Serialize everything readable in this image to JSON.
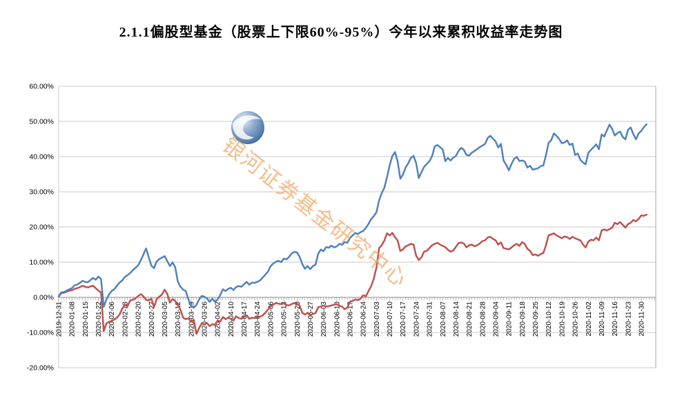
{
  "title": "2.1.1偏股型基金（股票上下限60%-95%）今年以来累积收益率走势图",
  "watermark": {
    "text": "银河证券基金研究中心",
    "color": "#F2A45F"
  },
  "logo": {
    "name": "galaxy-securities-sphere-logo"
  },
  "chart_data": {
    "type": "line",
    "title": "2.1.1偏股型基金（股票上下限60%-95%）今年以来累积收益率走势图",
    "xlabel": "",
    "ylabel": "",
    "ylim": [
      -20,
      60
    ],
    "grid": true,
    "legend_position": "none",
    "y_tick_values": [
      60,
      50,
      40,
      30,
      20,
      10,
      0,
      -10,
      -20
    ],
    "y_tick_labels": [
      "60.00%",
      "50.00%",
      "40.00%",
      "30.00%",
      "20.00%",
      "10.00%",
      "0.00%",
      "-10.00%",
      "-20.00%"
    ],
    "label_interval_days": 5,
    "x_tick_labels": [
      "2019-12-31",
      "2020-01-08",
      "2020-01-15",
      "2020-01-22",
      "2020-02-06",
      "2020-02-13",
      "2020-02-20",
      "2020-02-27",
      "2020-03-05",
      "2020-03-12",
      "2020-03-19",
      "2020-03-26",
      "2020-04-02",
      "2020-04-10",
      "2020-04-17",
      "2020-04-24",
      "2020-05-06",
      "2020-05-13",
      "2020-05-20",
      "2020-05-27",
      "2020-06-03",
      "2020-06-10",
      "2020-06-17",
      "2020-06-24",
      "2020-07-03",
      "2020-07-10",
      "2020-07-17",
      "2020-07-24",
      "2020-07-31",
      "2020-08-07",
      "2020-08-14",
      "2020-08-21",
      "2020-08-28",
      "2020-09-04",
      "2020-09-11",
      "2020-09-18",
      "2020-09-25",
      "2020-10-12",
      "2020-10-19",
      "2020-10-26",
      "2020-11-02",
      "2020-11-09",
      "2020-11-16",
      "2020-11-23",
      "2020-11-30"
    ],
    "series": [
      {
        "name": "blue",
        "color": "#4F81BD",
        "unit": "percent_ytd_cumulative_return",
        "values": [
          0.3,
          1.4,
          1.5,
          1.9,
          2.3,
          2.6,
          3.4,
          3.6,
          4.1,
          4.7,
          4.4,
          4.3,
          4.9,
          5.5,
          5.0,
          5.9,
          5.2,
          -2.7,
          -0.6,
          0.8,
          1.8,
          2.3,
          3.3,
          4.2,
          4.8,
          5.8,
          6.3,
          6.9,
          7.7,
          8.4,
          9.1,
          10.5,
          12.2,
          13.9,
          11.5,
          9.0,
          8.3,
          10.2,
          10.9,
          11.3,
          11.7,
          10.3,
          8.9,
          9.9,
          8.6,
          4.5,
          3.0,
          2.2,
          1.8,
          -0.6,
          -2.4,
          -2.9,
          -2.2,
          -0.6,
          0.4,
          0.2,
          -0.3,
          -1.3,
          -0.4,
          -1.2,
          -0.6,
          0.6,
          2.3,
          1.8,
          2.4,
          2.7,
          2.1,
          2.9,
          3.2,
          3.0,
          3.7,
          4.4,
          3.6,
          4.2,
          4.1,
          4.4,
          4.8,
          5.6,
          6.4,
          7.3,
          8.8,
          9.6,
          10.1,
          10.4,
          10.0,
          11.0,
          10.8,
          11.5,
          12.5,
          12.9,
          12.8,
          11.5,
          9.5,
          8.1,
          8.9,
          8.0,
          8.9,
          9.3,
          12.4,
          13.6,
          13.1,
          14.3,
          14.1,
          14.7,
          14.2,
          14.5,
          15.2,
          14.9,
          15.7,
          15.5,
          16.9,
          17.6,
          18.3,
          18.0,
          18.5,
          18.9,
          19.7,
          20.9,
          22.2,
          23.1,
          24.2,
          27.6,
          29.6,
          31.2,
          34.2,
          37.5,
          40.2,
          41.3,
          38.6,
          33.7,
          34.9,
          36.9,
          38.1,
          39.6,
          40.2,
          38.1,
          33.9,
          35.6,
          37.1,
          37.9,
          38.7,
          40.1,
          42.9,
          43.3,
          42.7,
          42.1,
          38.7,
          39.6,
          38.9,
          39.7,
          40.2,
          41.6,
          42.5,
          41.9,
          40.5,
          40.3,
          41.1,
          41.6,
          42.1,
          42.7,
          43.1,
          43.6,
          45.3,
          45.9,
          45.1,
          44.3,
          42.6,
          43.6,
          38.9,
          37.6,
          36.1,
          37.9,
          39.4,
          39.9,
          38.7,
          38.9,
          38.6,
          36.9,
          37.4,
          36.3,
          36.5,
          36.7,
          37.3,
          37.5,
          40.4,
          43.9,
          44.7,
          46.6,
          45.9,
          45.0,
          43.8,
          44.0,
          44.6,
          43.3,
          43.7,
          40.5,
          40.9,
          39.1,
          38.3,
          37.8,
          41.1,
          41.9,
          42.7,
          43.5,
          42.1,
          46.3,
          45.7,
          47.4,
          49.1,
          47.9,
          46.0,
          46.7,
          47.1,
          45.6,
          44.9,
          47.6,
          48.3,
          46.4,
          44.9,
          46.6,
          47.3,
          48.4,
          49.2
        ]
      },
      {
        "name": "red",
        "color": "#C0504D",
        "unit": "percent_ytd_cumulative_return",
        "values": [
          0.2,
          1.2,
          1.3,
          1.6,
          1.9,
          2.0,
          2.4,
          2.6,
          2.9,
          3.3,
          3.0,
          2.8,
          3.1,
          3.3,
          2.6,
          1.9,
          1.4,
          -9.6,
          -7.4,
          -7.0,
          -6.7,
          -6.3,
          -5.8,
          -4.9,
          -3.2,
          -2.1,
          -2.5,
          -0.9,
          -0.7,
          -0.3,
          0.4,
          0.9,
          0.3,
          -0.7,
          -0.9,
          -0.4,
          -2.8,
          -0.5,
          0.2,
          0.8,
          2.2,
          1.0,
          -1.5,
          -0.5,
          -1.0,
          -2.2,
          -3.5,
          -5.8,
          -6.2,
          -6.0,
          -6.9,
          -6.4,
          -10.4,
          -8.8,
          -7.4,
          -7.7,
          -7.3,
          -8.2,
          -7.6,
          -7.9,
          -6.6,
          -6.9,
          -5.6,
          -6.2,
          -5.8,
          -6.1,
          -6.6,
          -5.4,
          -5.9,
          -6.1,
          -5.5,
          -5.1,
          -6.1,
          -5.8,
          -5.9,
          -5.7,
          -5.5,
          -5.2,
          -4.4,
          -3.5,
          -2.6,
          -2.1,
          -1.6,
          -1.8,
          -1.9,
          -1.7,
          -2.2,
          -2.3,
          -1.9,
          -1.6,
          -1.8,
          -2.4,
          -4.4,
          -4.9,
          -4.4,
          -5.0,
          -4.7,
          -4.5,
          -2.8,
          -2.6,
          -2.4,
          -2.6,
          -2.5,
          -2.3,
          -2.1,
          -1.9,
          -2.4,
          -2.6,
          -3.4,
          -2.9,
          -1.3,
          -1.0,
          -0.6,
          -0.8,
          -0.4,
          0.6,
          0.3,
          1.8,
          3.2,
          5.3,
          8.5,
          14.0,
          14.8,
          16.2,
          18.2,
          17.6,
          18.3,
          17.1,
          16.1,
          13.2,
          13.6,
          14.5,
          14.8,
          15.2,
          15.0,
          11.8,
          10.6,
          11.4,
          13.0,
          13.2,
          14.0,
          14.8,
          15.2,
          15.5,
          15.0,
          14.6,
          14.3,
          13.5,
          13.0,
          13.3,
          14.4,
          15.4,
          15.6,
          15.3,
          14.2,
          14.8,
          15.0,
          14.5,
          14.8,
          15.3,
          16.0,
          16.2,
          17.0,
          17.2,
          16.6,
          16.2,
          15.0,
          15.6,
          14.0,
          13.8,
          13.6,
          14.2,
          14.8,
          15.2,
          14.6,
          15.7,
          15.2,
          13.8,
          13.2,
          12.0,
          12.2,
          11.8,
          12.3,
          12.6,
          14.8,
          17.6,
          17.9,
          18.2,
          17.6,
          17.2,
          16.8,
          17.3,
          17.1,
          16.6,
          17.2,
          16.8,
          16.5,
          16.2,
          15.0,
          14.2,
          15.8,
          16.4,
          16.2,
          17.0,
          16.2,
          19.0,
          19.3,
          19.0,
          19.4,
          19.8,
          21.2,
          20.8,
          21.4,
          20.6,
          19.8,
          20.8,
          21.2,
          22.0,
          21.6,
          22.3,
          23.3,
          23.2,
          23.5
        ]
      }
    ]
  }
}
